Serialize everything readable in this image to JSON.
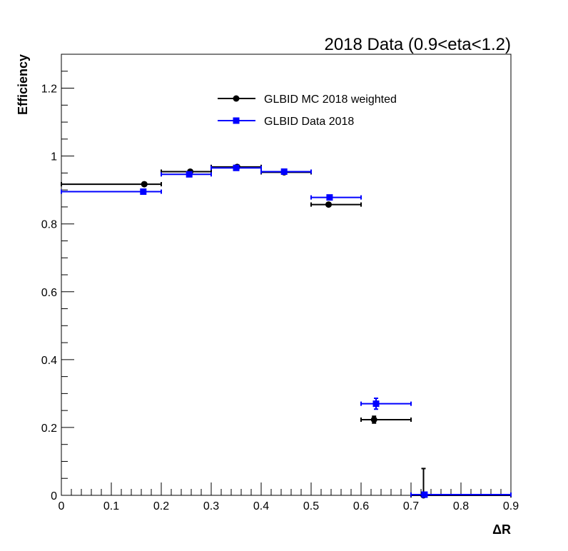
{
  "chart_data": {
    "type": "scatter",
    "title": "2018 Data (0.9<eta<1.2)",
    "xlabel": "ΔR",
    "ylabel": "Efficiency",
    "xlim": [
      0,
      0.9
    ],
    "ylim": [
      0,
      1.3
    ],
    "x_ticks": [
      "0",
      "0.1",
      "0.2",
      "0.3",
      "0.4",
      "0.5",
      "0.6",
      "0.7",
      "0.8",
      "0.9"
    ],
    "y_ticks": [
      "0",
      "0.2",
      "0.4",
      "0.6",
      "0.8",
      "1",
      "1.2"
    ],
    "legend_position": "top-center",
    "grid": false,
    "series": [
      {
        "name": "GLBID MC 2018 weighted",
        "color": "#000000",
        "marker": "circle",
        "points": [
          {
            "x": 0.166,
            "y": 0.917,
            "xlo": 0.0,
            "xhi": 0.2,
            "ylo": 0.912,
            "yhi": 0.922
          },
          {
            "x": 0.258,
            "y": 0.954,
            "xlo": 0.2,
            "xhi": 0.3,
            "ylo": 0.95,
            "yhi": 0.958
          },
          {
            "x": 0.352,
            "y": 0.968,
            "xlo": 0.3,
            "xhi": 0.4,
            "ylo": 0.965,
            "yhi": 0.971
          },
          {
            "x": 0.446,
            "y": 0.952,
            "xlo": 0.4,
            "xhi": 0.5,
            "ylo": 0.948,
            "yhi": 0.956
          },
          {
            "x": 0.535,
            "y": 0.857,
            "xlo": 0.5,
            "xhi": 0.6,
            "ylo": 0.852,
            "yhi": 0.862
          },
          {
            "x": 0.626,
            "y": 0.223,
            "xlo": 0.6,
            "xhi": 0.7,
            "ylo": 0.213,
            "yhi": 0.233
          },
          {
            "x": 0.725,
            "y": 0.0,
            "xlo": 0.7,
            "xhi": 0.9,
            "ylo": 0.0,
            "yhi": 0.079
          }
        ]
      },
      {
        "name": "GLBID Data 2018",
        "color": "#0000ff",
        "marker": "square",
        "points": [
          {
            "x": 0.164,
            "y": 0.895,
            "xlo": 0.0,
            "xhi": 0.2,
            "ylo": 0.89,
            "yhi": 0.9
          },
          {
            "x": 0.256,
            "y": 0.946,
            "xlo": 0.2,
            "xhi": 0.3,
            "ylo": 0.942,
            "yhi": 0.95
          },
          {
            "x": 0.35,
            "y": 0.965,
            "xlo": 0.3,
            "xhi": 0.4,
            "ylo": 0.962,
            "yhi": 0.968
          },
          {
            "x": 0.446,
            "y": 0.954,
            "xlo": 0.4,
            "xhi": 0.5,
            "ylo": 0.95,
            "yhi": 0.958
          },
          {
            "x": 0.537,
            "y": 0.878,
            "xlo": 0.5,
            "xhi": 0.6,
            "ylo": 0.873,
            "yhi": 0.883
          },
          {
            "x": 0.63,
            "y": 0.27,
            "xlo": 0.6,
            "xhi": 0.7,
            "ylo": 0.254,
            "yhi": 0.286
          },
          {
            "x": 0.727,
            "y": 0.002,
            "xlo": 0.7,
            "xhi": 0.9,
            "ylo": 0.0,
            "yhi": 0.004
          }
        ]
      }
    ]
  }
}
